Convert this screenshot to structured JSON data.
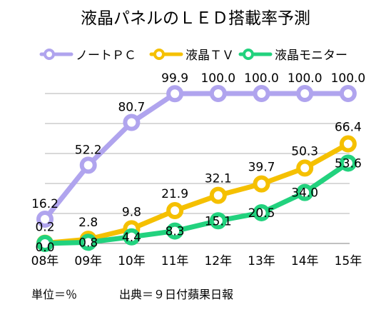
{
  "chart_data": {
    "type": "line",
    "title": "液晶パネルのＬＥＤ搭載率予測",
    "categories": [
      "08年",
      "09年",
      "10年",
      "11年",
      "12年",
      "13年",
      "14年",
      "15年"
    ],
    "series": [
      {
        "name": "ノートＰＣ",
        "color": "#b0a4ee",
        "values": [
          16.2,
          52.2,
          80.7,
          99.9,
          100.0,
          100.0,
          100.0,
          100.0
        ]
      },
      {
        "name": "液晶ＴＶ",
        "color": "#f5c000",
        "values": [
          0.2,
          2.8,
          9.8,
          21.9,
          32.1,
          39.7,
          50.3,
          66.4
        ]
      },
      {
        "name": "液晶モニター",
        "color": "#22d27e",
        "values": [
          0.0,
          0.8,
          4.4,
          8.3,
          15.1,
          20.5,
          34.0,
          53.6
        ]
      }
    ],
    "ylim": [
      0,
      100
    ],
    "grid": true,
    "legend_position": "top",
    "notes": {
      "unit": "単位＝％",
      "source": "出典＝９日付蘋果日報"
    }
  }
}
